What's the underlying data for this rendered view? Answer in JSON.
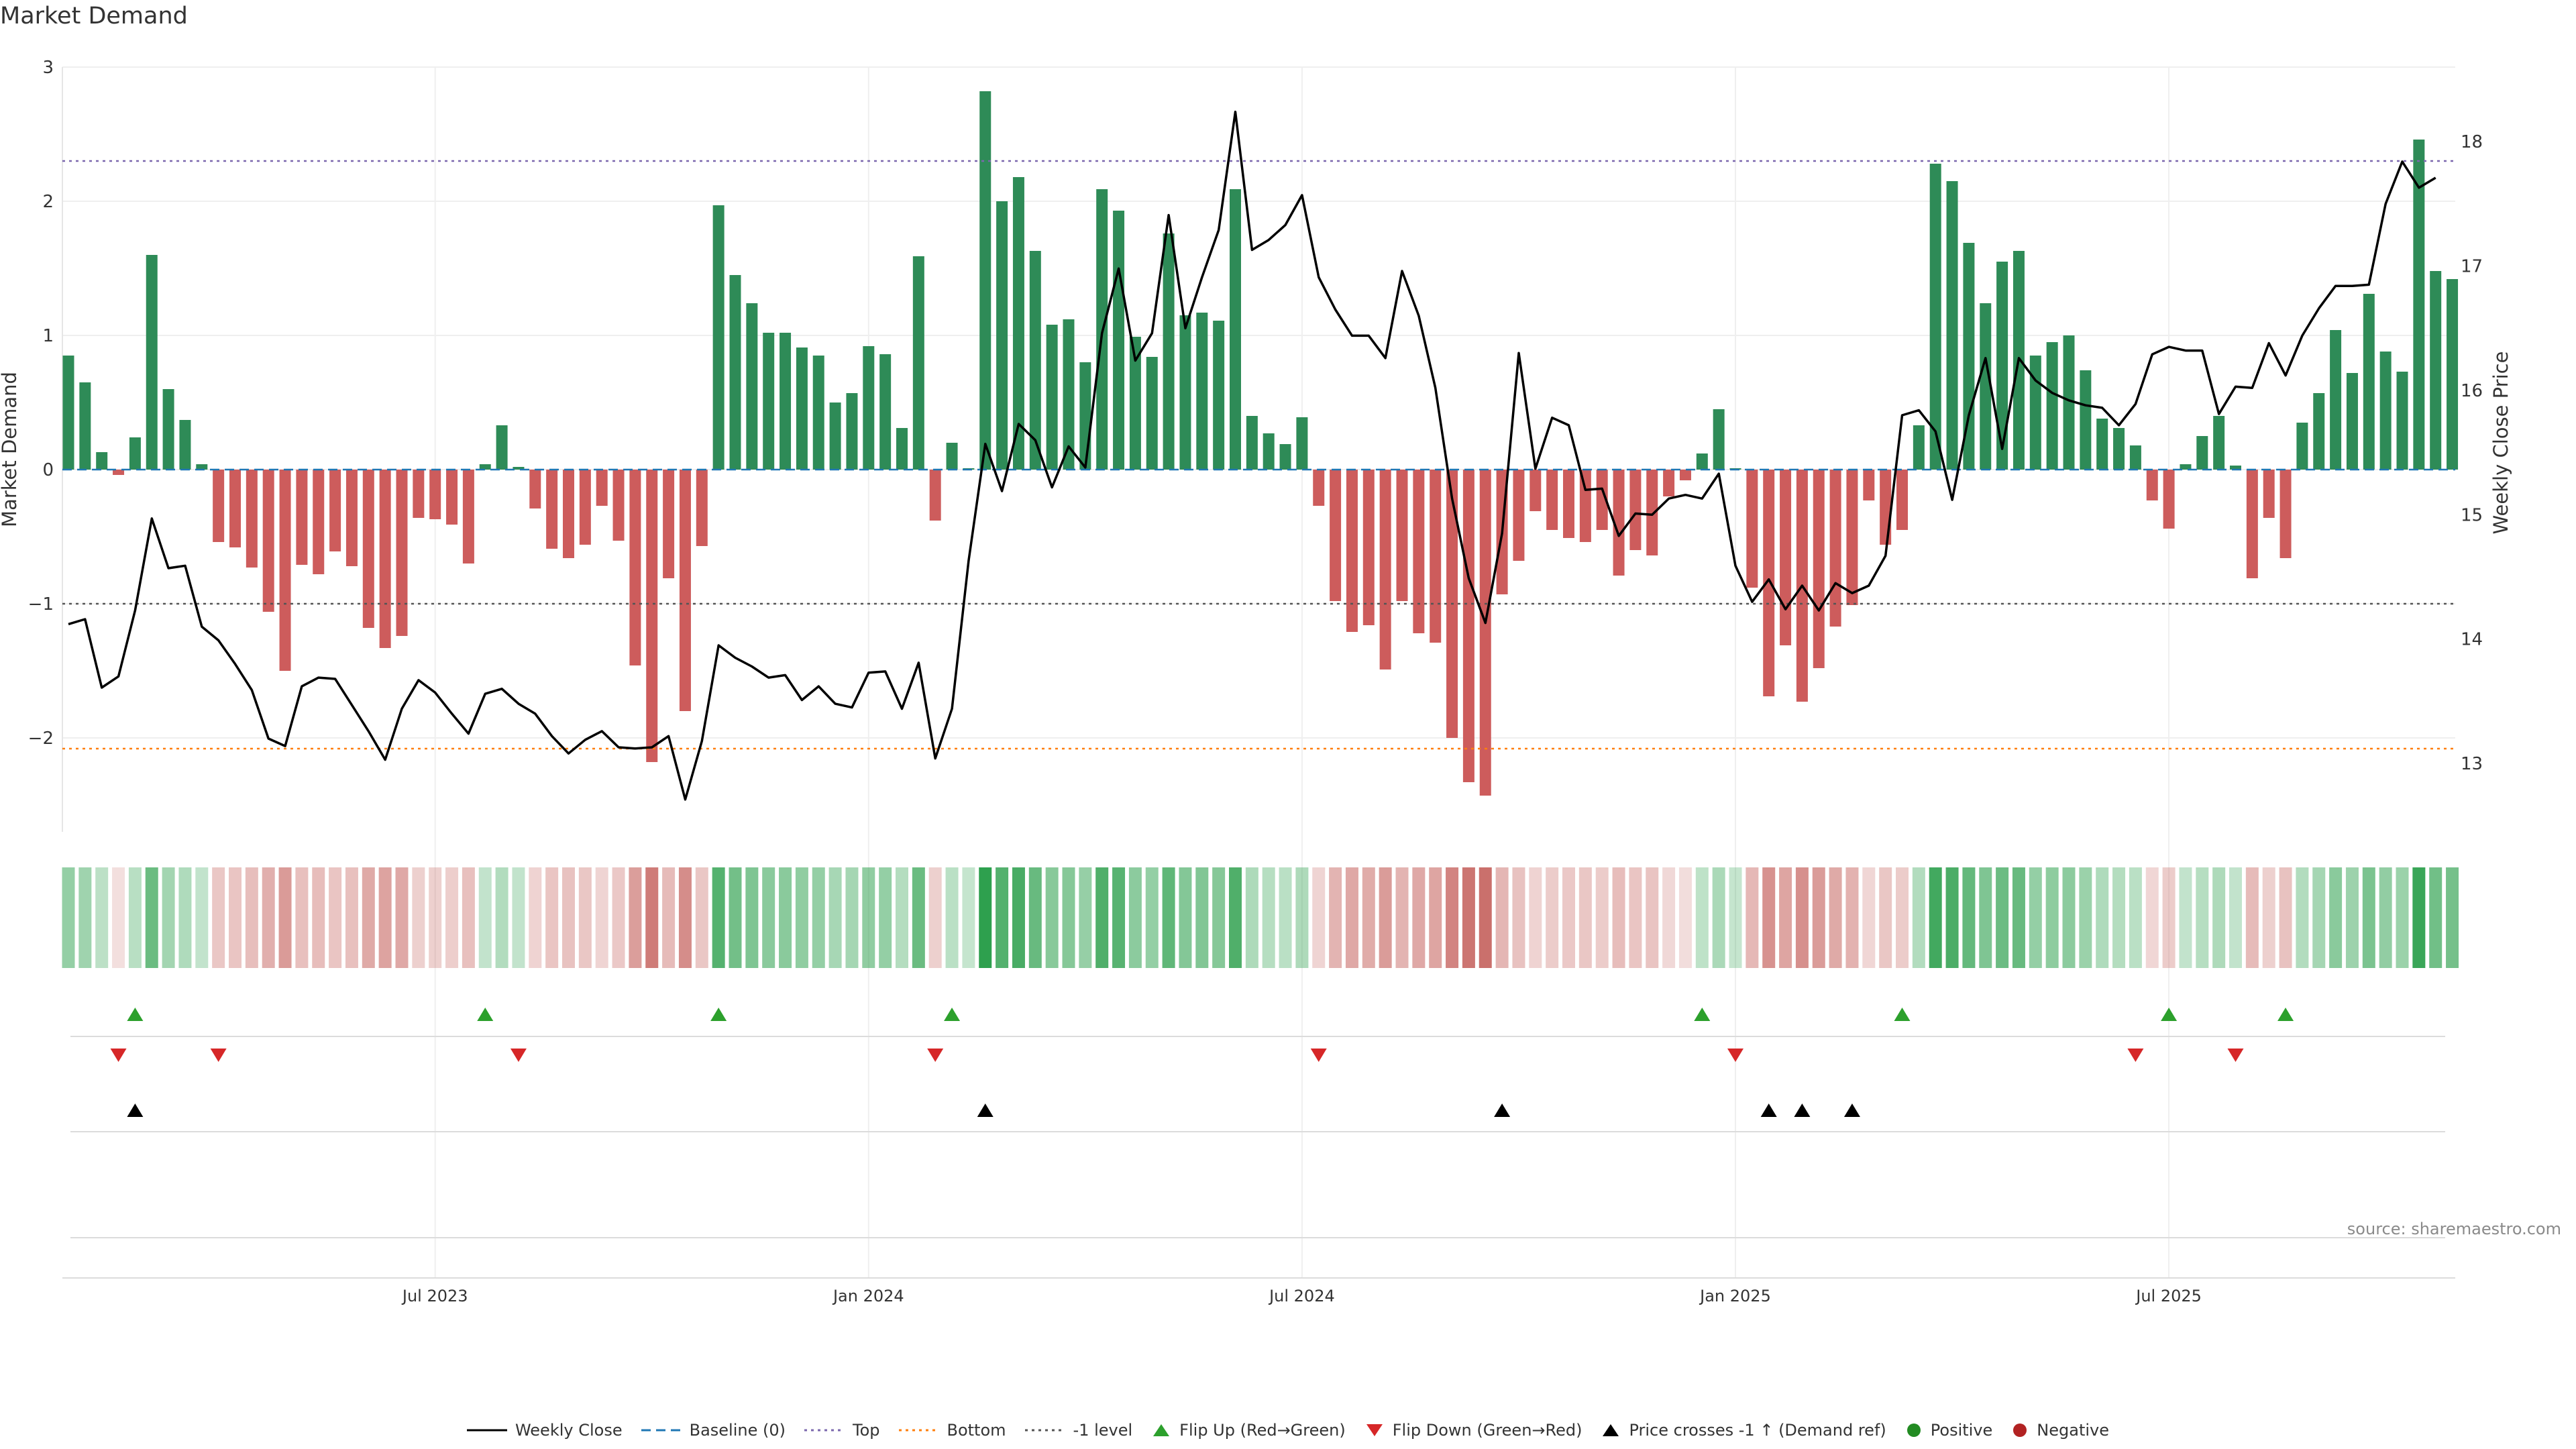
{
  "title": "Market Demand",
  "source_text": "source: sharemaestro.com",
  "chart_data": {
    "type": "bar",
    "y_label_left": "Market Demand",
    "y_label_right": "Weekly Close Price",
    "y_ticks_left": [
      "3",
      "2",
      "1",
      "0",
      "−1",
      "−2"
    ],
    "y_ticks_right": [
      "18",
      "17",
      "16",
      "15",
      "14",
      "13"
    ],
    "ylim_left": [
      -2.7,
      3.0
    ],
    "ylim_right": [
      12.45,
      18.6
    ],
    "x_ticks": [
      "Jul 2023",
      "Jan 2024",
      "Jul 2024",
      "Jan 2025",
      "Jul 2025"
    ],
    "x_tick_week_index": [
      22,
      48,
      74,
      100,
      126
    ],
    "reference_lines": {
      "top": 2.3,
      "bottom": -2.08,
      "minus_one": -1.0,
      "baseline": 0
    },
    "demand_values": [
      0.85,
      0.65,
      0.13,
      -0.04,
      0.24,
      1.6,
      0.6,
      0.37,
      0.04,
      -0.54,
      -0.58,
      -0.73,
      -1.06,
      -1.5,
      -0.71,
      -0.78,
      -0.61,
      -0.72,
      -1.18,
      -1.33,
      -1.24,
      -0.36,
      -0.37,
      -0.41,
      -0.7,
      0.04,
      0.33,
      0.02,
      -0.29,
      -0.59,
      -0.66,
      -0.56,
      -0.27,
      -0.53,
      -1.46,
      -2.18,
      -0.81,
      -1.8,
      -0.57,
      1.97,
      1.45,
      1.24,
      1.02,
      1.02,
      0.91,
      0.85,
      0.5,
      0.57,
      0.92,
      0.86,
      0.31,
      1.59,
      -0.38,
      0.2,
      0.01,
      2.82,
      2.0,
      2.18,
      1.63,
      1.08,
      1.12,
      0.8,
      2.09,
      1.93,
      0.99,
      0.84,
      1.76,
      1.15,
      1.17,
      1.11,
      2.09,
      0.4,
      0.27,
      0.19,
      0.39,
      -0.27,
      -0.98,
      -1.21,
      -1.16,
      -1.49,
      -0.98,
      -1.22,
      -1.29,
      -2.0,
      -2.33,
      -2.43,
      -0.93,
      -0.68,
      -0.31,
      -0.45,
      -0.51,
      -0.54,
      -0.45,
      -0.79,
      -0.6,
      -0.64,
      -0.2,
      -0.08,
      0.12,
      0.45,
      0.01,
      -0.88,
      -1.69,
      -1.31,
      -1.73,
      -1.48,
      -1.17,
      -1.01,
      -0.23,
      -0.56,
      -0.45,
      0.33,
      2.28,
      2.15,
      1.69,
      1.24,
      1.55,
      1.63,
      0.85,
      0.95,
      1.0,
      0.74,
      0.38,
      0.31,
      0.18,
      -0.23,
      -0.44,
      0.04,
      0.25,
      0.4,
      0.03,
      -0.81,
      -0.36,
      -0.66,
      0.35,
      0.57,
      1.04,
      0.72,
      1.31,
      0.88,
      0.73,
      2.46,
      1.48,
      1.42
    ],
    "weekly_close": [
      14.12,
      14.16,
      13.61,
      13.7,
      14.23,
      14.97,
      14.57,
      14.59,
      14.1,
      13.99,
      13.8,
      13.59,
      13.2,
      13.14,
      13.62,
      13.69,
      13.68,
      13.47,
      13.26,
      13.03,
      13.44,
      13.67,
      13.57,
      13.4,
      13.24,
      13.56,
      13.6,
      13.48,
      13.4,
      13.22,
      13.08,
      13.19,
      13.26,
      13.13,
      13.12,
      13.13,
      13.22,
      12.71,
      13.18,
      13.95,
      13.85,
      13.78,
      13.69,
      13.71,
      13.51,
      13.62,
      13.48,
      13.45,
      13.73,
      13.74,
      13.44,
      13.81,
      13.04,
      13.44,
      14.63,
      15.57,
      15.19,
      15.73,
      15.6,
      15.22,
      15.55,
      15.38,
      16.46,
      16.98,
      16.24,
      16.46,
      17.41,
      16.5,
      16.91,
      17.29,
      18.24,
      17.13,
      17.21,
      17.33,
      17.57,
      16.91,
      16.65,
      16.44,
      16.44,
      16.26,
      16.96,
      16.6,
      16.02,
      15.13,
      14.49,
      14.13,
      14.85,
      16.3,
      15.37,
      15.78,
      15.72,
      15.2,
      15.21,
      14.83,
      15.01,
      15.0,
      15.13,
      15.16,
      15.13,
      15.33,
      14.59,
      14.3,
      14.48,
      14.24,
      14.43,
      14.23,
      14.45,
      14.37,
      14.43,
      14.67,
      15.8,
      15.84,
      15.67,
      15.12,
      15.8,
      16.26,
      15.53,
      16.26,
      16.08,
      15.98,
      15.92,
      15.88,
      15.86,
      15.72,
      15.89,
      16.29,
      16.35,
      16.32,
      16.32,
      15.81,
      16.03,
      16.02,
      16.38,
      16.12,
      16.44,
      16.66,
      16.84,
      16.84,
      16.85,
      17.5,
      17.84,
      17.63,
      17.71
    ],
    "flip_up_weeks": [
      4,
      25,
      39,
      53,
      98,
      110,
      126,
      133
    ],
    "flip_down_weeks": [
      3,
      9,
      27,
      52,
      75,
      100,
      124,
      130
    ],
    "price_cross_weeks": [
      4,
      55,
      86,
      102,
      104,
      107
    ],
    "series": [
      {
        "name": "Weekly Close",
        "color": "#000000"
      },
      {
        "name": "Baseline (0)",
        "color": "#1f77b4"
      },
      {
        "name": "Top",
        "color": "#7b68ae"
      },
      {
        "name": "Bottom",
        "color": "#ff7f0e"
      },
      {
        "name": "-1 level",
        "color": "#555555"
      },
      {
        "name": "Flip Up (Red→Green)",
        "color": "#2ca02c"
      },
      {
        "name": "Flip Down (Green→Red)",
        "color": "#d62728"
      },
      {
        "name": "Price crosses -1 ↑ (Demand ref)",
        "color": "#000000"
      },
      {
        "name": "Positive",
        "color": "#228b22"
      },
      {
        "name": "Negative",
        "color": "#b22222"
      }
    ],
    "colors": {
      "pos_bar": "#2e8b57",
      "neg_bar": "#cd5c5c"
    }
  }
}
